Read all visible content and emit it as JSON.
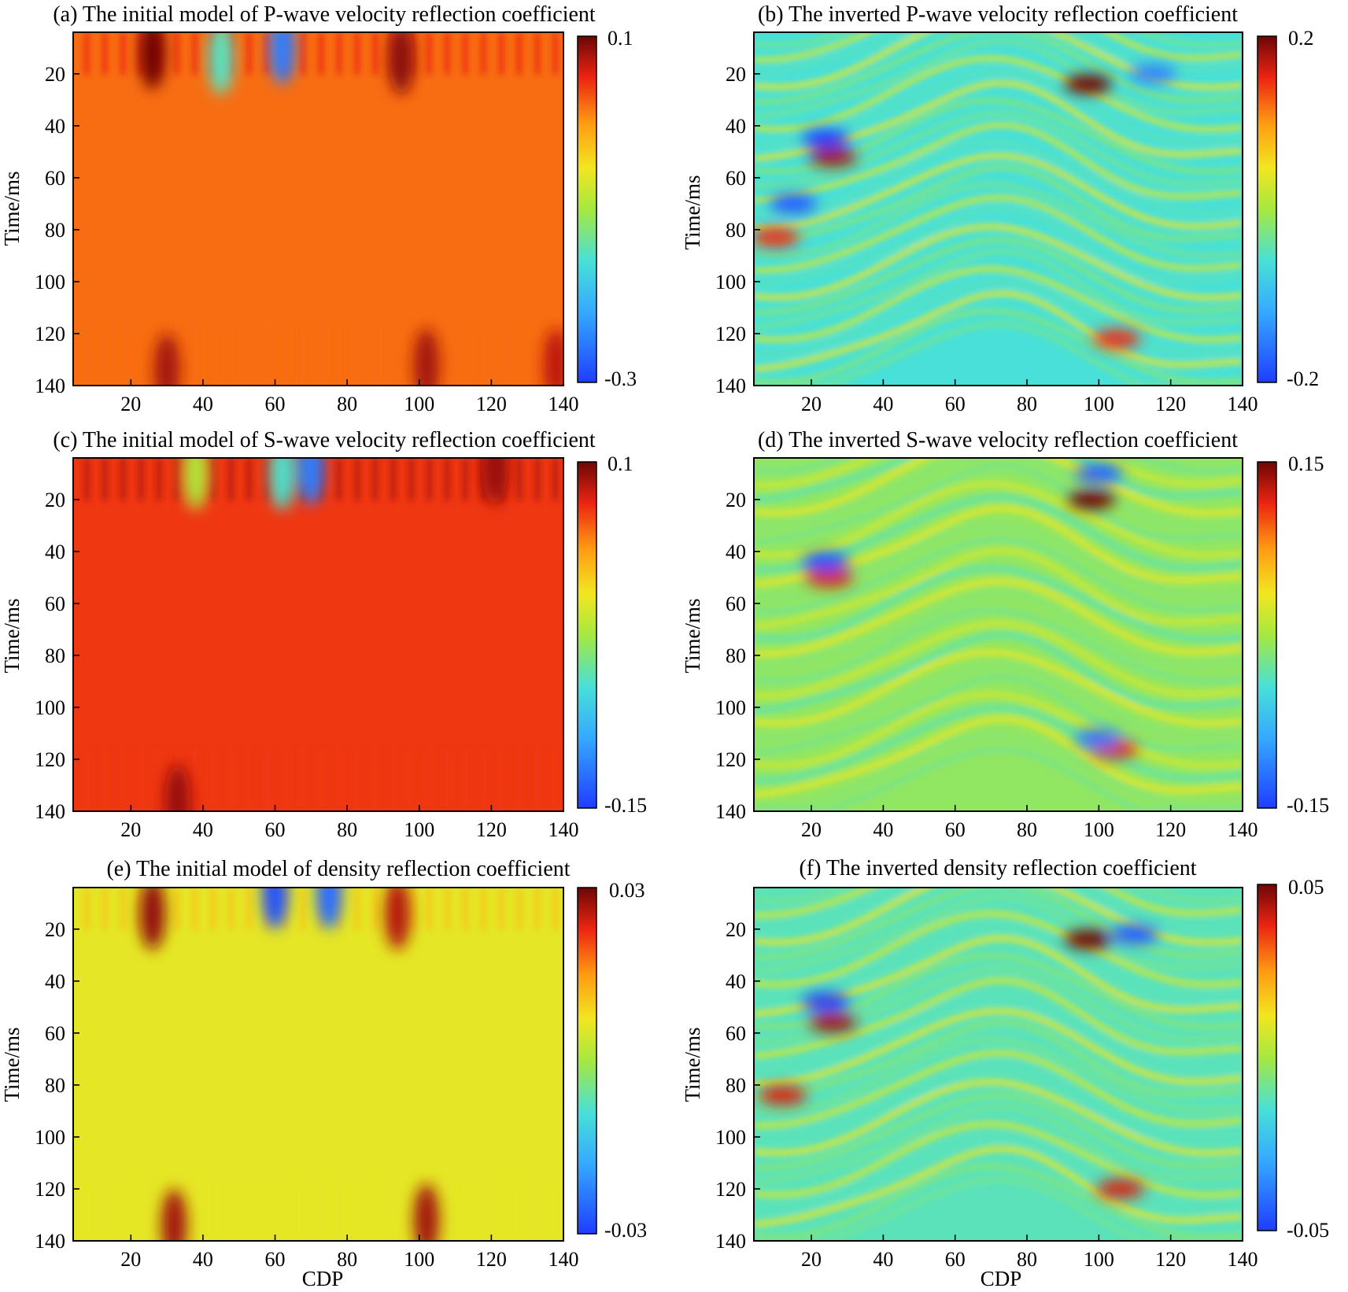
{
  "chart_data": [
    {
      "id": "a",
      "type": "heatmap",
      "title": "(a) The initial model of P-wave velocity reflection coefficient",
      "xlabel": "",
      "ylabel": "Time/ms",
      "x_ticks": [
        20,
        40,
        60,
        80,
        100,
        120,
        140
      ],
      "y_ticks": [
        20,
        40,
        60,
        80,
        100,
        120,
        140
      ],
      "xlim": [
        4,
        140
      ],
      "ylim": [
        4,
        140
      ],
      "y_reversed": true,
      "colorbar": {
        "min": -0.3,
        "max": 0.1,
        "min_label": "-0.3",
        "max_label": "0.1",
        "colormap": "jet"
      },
      "background_value": 0.02,
      "features": [
        {
          "cdp": 26,
          "time": 12,
          "value": 0.1
        },
        {
          "cdp": 95,
          "time": 14,
          "value": 0.09
        },
        {
          "cdp": 30,
          "time": 134,
          "value": 0.08
        },
        {
          "cdp": 102,
          "time": 132,
          "value": 0.08
        },
        {
          "cdp": 138,
          "time": 132,
          "value": 0.07
        },
        {
          "cdp": 62,
          "time": 10,
          "value": -0.25
        },
        {
          "cdp": 45,
          "time": 14,
          "value": -0.15
        }
      ]
    },
    {
      "id": "b",
      "type": "heatmap",
      "title": "(b) The inverted P-wave velocity reflection coefficient",
      "xlabel": "",
      "ylabel": "Time/ms",
      "x_ticks": [
        20,
        40,
        60,
        80,
        100,
        120,
        140
      ],
      "y_ticks": [
        20,
        40,
        60,
        80,
        100,
        120,
        140
      ],
      "xlim": [
        4,
        140
      ],
      "ylim": [
        4,
        140
      ],
      "y_reversed": true,
      "colorbar": {
        "min": -0.2,
        "max": 0.2,
        "min_label": "-0.2",
        "max_label": "0.2",
        "colormap": "jet"
      },
      "background_value": -0.06,
      "features": [
        {
          "cdp": 97,
          "time": 24,
          "value": 0.2
        },
        {
          "cdp": 26,
          "time": 52,
          "value": 0.18
        },
        {
          "cdp": 10,
          "time": 83,
          "value": 0.15
        },
        {
          "cdp": 24,
          "time": 45,
          "value": -0.2
        },
        {
          "cdp": 15,
          "time": 70,
          "value": -0.18
        },
        {
          "cdp": 105,
          "time": 122,
          "value": 0.15
        },
        {
          "cdp": 115,
          "time": 20,
          "value": -0.15
        }
      ]
    },
    {
      "id": "c",
      "type": "heatmap",
      "title": "(c) The initial model of S-wave velocity reflection coefficient",
      "xlabel": "",
      "ylabel": "Time/ms",
      "x_ticks": [
        20,
        40,
        60,
        80,
        100,
        120,
        140
      ],
      "y_ticks": [
        20,
        40,
        60,
        80,
        100,
        120,
        140
      ],
      "xlim": [
        4,
        140
      ],
      "ylim": [
        4,
        140
      ],
      "y_reversed": true,
      "colorbar": {
        "min": -0.15,
        "max": 0.1,
        "min_label": "-0.15",
        "max_label": "0.1",
        "colormap": "jet"
      },
      "background_value": 0.065,
      "features": [
        {
          "cdp": 38,
          "time": 10,
          "value": -0.02
        },
        {
          "cdp": 62,
          "time": 10,
          "value": -0.06
        },
        {
          "cdp": 70,
          "time": 8,
          "value": -0.12
        },
        {
          "cdp": 33,
          "time": 136,
          "value": 0.09
        },
        {
          "cdp": 121,
          "time": 8,
          "value": 0.09
        }
      ]
    },
    {
      "id": "d",
      "type": "heatmap",
      "title": "(d) The inverted S-wave velocity reflection coefficient",
      "xlabel": "",
      "ylabel": "Time/ms",
      "x_ticks": [
        20,
        40,
        60,
        80,
        100,
        120,
        140
      ],
      "y_ticks": [
        20,
        40,
        60,
        80,
        100,
        120,
        140
      ],
      "xlim": [
        4,
        140
      ],
      "ylim": [
        4,
        140
      ],
      "y_reversed": true,
      "colorbar": {
        "min": -0.15,
        "max": 0.15,
        "min_label": "-0.15",
        "max_label": "0.15",
        "colormap": "jet"
      },
      "background_value": -0.01,
      "features": [
        {
          "cdp": 98,
          "time": 20,
          "value": 0.15
        },
        {
          "cdp": 25,
          "time": 50,
          "value": 0.12
        },
        {
          "cdp": 24,
          "time": 44,
          "value": -0.14
        },
        {
          "cdp": 100,
          "time": 10,
          "value": -0.13
        },
        {
          "cdp": 104,
          "time": 116,
          "value": 0.12
        },
        {
          "cdp": 100,
          "time": 112,
          "value": -0.12
        }
      ]
    },
    {
      "id": "e",
      "type": "heatmap",
      "title": "(e) The initial model of density reflection coefficient",
      "xlabel": "CDP",
      "ylabel": "Time/ms",
      "x_ticks": [
        20,
        40,
        60,
        80,
        100,
        120,
        140
      ],
      "y_ticks": [
        20,
        40,
        60,
        80,
        100,
        120,
        140
      ],
      "xlim": [
        4,
        140
      ],
      "ylim": [
        4,
        140
      ],
      "y_reversed": true,
      "colorbar": {
        "min": -0.03,
        "max": 0.03,
        "min_label": "-0.03",
        "max_label": "0.03",
        "colormap": "jet"
      },
      "background_value": 0.006,
      "features": [
        {
          "cdp": 26,
          "time": 14,
          "value": 0.028
        },
        {
          "cdp": 94,
          "time": 14,
          "value": 0.026
        },
        {
          "cdp": 32,
          "time": 134,
          "value": 0.027
        },
        {
          "cdp": 102,
          "time": 132,
          "value": 0.027
        },
        {
          "cdp": 60,
          "time": 6,
          "value": -0.028
        },
        {
          "cdp": 75,
          "time": 6,
          "value": -0.025
        }
      ]
    },
    {
      "id": "f",
      "type": "heatmap",
      "title": "(f)  The inverted density reflection coefficient",
      "xlabel": "CDP",
      "ylabel": "Time/ms",
      "x_ticks": [
        20,
        40,
        60,
        80,
        100,
        120,
        140
      ],
      "y_ticks": [
        20,
        40,
        60,
        80,
        100,
        120,
        140
      ],
      "xlim": [
        4,
        140
      ],
      "ylim": [
        4,
        140
      ],
      "y_reversed": true,
      "colorbar": {
        "min": -0.05,
        "max": 0.05,
        "min_label": "-0.05",
        "max_label": "0.05",
        "colormap": "jet"
      },
      "background_value": -0.012,
      "features": [
        {
          "cdp": 97,
          "time": 24,
          "value": 0.05
        },
        {
          "cdp": 26,
          "time": 56,
          "value": 0.045
        },
        {
          "cdp": 12,
          "time": 84,
          "value": 0.04
        },
        {
          "cdp": 24,
          "time": 48,
          "value": -0.05
        },
        {
          "cdp": 110,
          "time": 22,
          "value": -0.045
        },
        {
          "cdp": 106,
          "time": 120,
          "value": 0.04
        }
      ]
    }
  ]
}
